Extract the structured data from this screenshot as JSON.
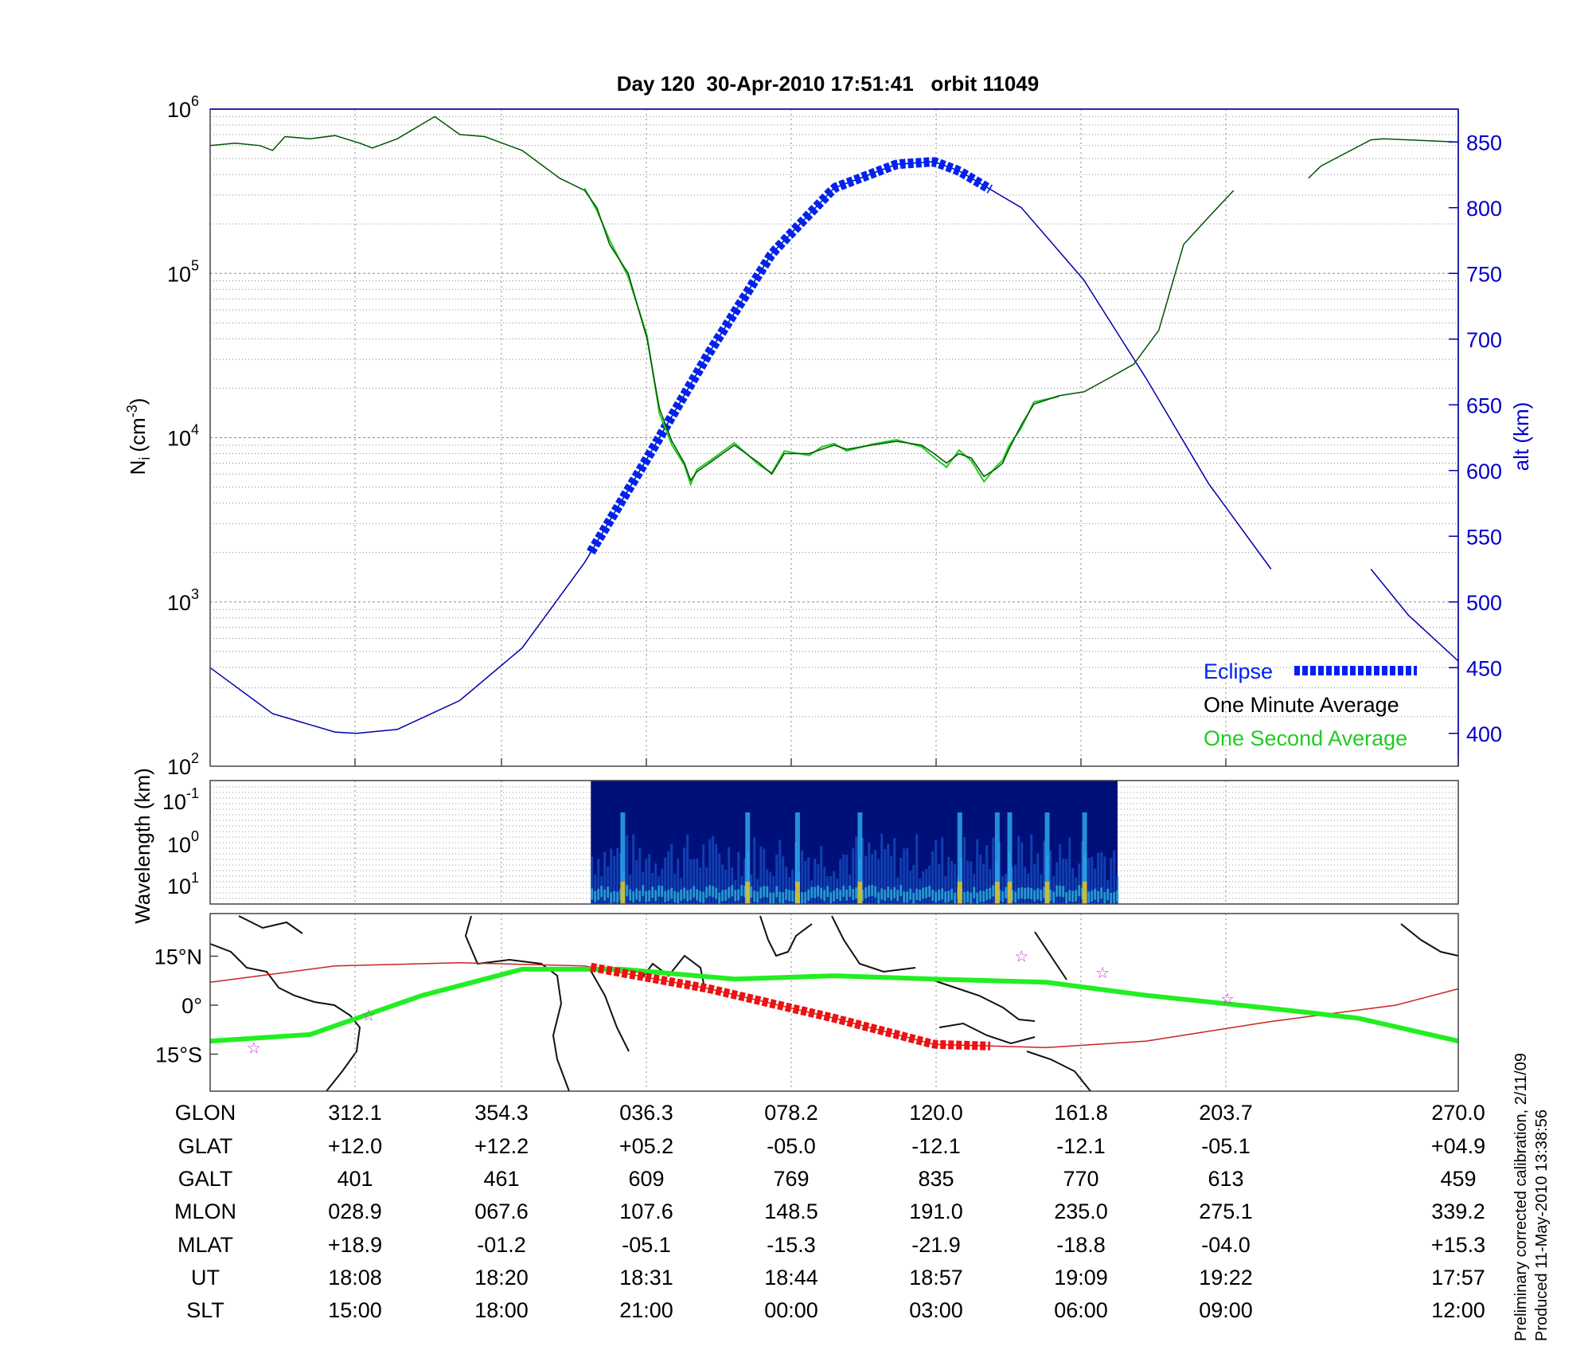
{
  "title": "Day 120  30-Apr-2010 17:51:41   orbit 11049",
  "colors": {
    "ion_density_minute": "#005500",
    "ion_density_second": "#22cc22",
    "altitude": "#0000aa",
    "eclipse": "#0022ee",
    "ground_track": "#22ee22",
    "orbit_line": "#cc2222",
    "eclipse_track": "#ee1111",
    "station_star": "#cc33cc",
    "spectrogram_bg": "#00107a"
  },
  "chart_data": [
    {
      "type": "line",
      "ylabel": "N_i (cm^-3)",
      "ylabel_base": "N",
      "ylabel_sub": "i",
      "ylabel_unit": "(cm",
      "ylabel_exp": "-3",
      "ylabel_close": ")",
      "y_scale": "log",
      "ylim": [
        100,
        1000000
      ],
      "y_ticks": [
        {
          "base": "10",
          "exp": "2"
        },
        {
          "base": "10",
          "exp": "3"
        },
        {
          "base": "10",
          "exp": "4"
        },
        {
          "base": "10",
          "exp": "5"
        },
        {
          "base": "10",
          "exp": "6"
        }
      ],
      "y2label": "alt (km)",
      "y2lim": [
        375,
        875
      ],
      "y2_ticks": [
        "400",
        "450",
        "500",
        "550",
        "600",
        "650",
        "700",
        "750",
        "800",
        "850"
      ],
      "grid": true,
      "legend_position": "bottom-right",
      "legend": [
        {
          "label": "Eclipse",
          "color": "#0022ee"
        },
        {
          "label": "One Minute Average",
          "color": "#000000"
        },
        {
          "label": "One Second Average",
          "color": "#22cc22"
        }
      ],
      "series": [
        {
          "name": "One Minute Average",
          "x_frac": [
            0,
            0.02,
            0.04,
            0.05,
            0.06,
            0.08,
            0.1,
            0.12,
            0.13,
            0.15,
            0.18,
            0.2,
            0.22,
            0.25,
            0.28,
            0.3,
            0.31,
            0.32,
            0.335,
            0.35,
            0.36,
            0.37,
            0.38,
            0.385,
            0.39,
            0.4,
            0.42,
            0.44,
            0.45,
            0.46,
            0.48,
            0.49,
            0.5,
            0.51,
            0.53,
            0.55,
            0.57,
            0.58,
            0.59,
            0.6,
            0.61,
            0.62,
            0.63,
            0.635,
            0.64,
            0.65,
            0.66,
            0.68,
            0.69,
            0.7,
            0.72,
            0.74,
            0.76,
            0.78,
            0.8,
            0.82,
            0.83,
            0.87,
            0.88,
            0.89,
            0.93,
            0.94,
            0.96,
            0.98,
            1
          ],
          "y": [
            600000,
            620000,
            600000,
            560000,
            680000,
            660000,
            690000,
            620000,
            580000,
            660000,
            900000,
            700000,
            680000,
            560000,
            380000,
            320000,
            250000,
            150000,
            100000,
            40000,
            15000,
            9500,
            7000,
            5500,
            6200,
            7000,
            9000,
            7000,
            6000,
            8000,
            8000,
            8500,
            9000,
            8500,
            9000,
            9500,
            9000,
            8000,
            7000,
            8000,
            7500,
            5800,
            6500,
            7000,
            8500,
            12000,
            16000,
            18000,
            18500,
            19000,
            23000,
            28000,
            45000,
            150000,
            220000,
            320000,
            null,
            null,
            380000,
            450000,
            650000,
            660000,
            650000,
            640000,
            630000
          ]
        },
        {
          "name": "One Second Average",
          "x_frac": [
            0.3,
            0.31,
            0.32,
            0.335,
            0.35,
            0.36,
            0.37,
            0.38,
            0.385,
            0.39,
            0.4,
            0.42,
            0.44,
            0.45,
            0.46,
            0.48,
            0.49,
            0.5,
            0.51,
            0.53,
            0.55,
            0.57,
            0.58,
            0.59,
            0.6,
            0.61,
            0.62,
            0.63,
            0.635,
            0.64,
            0.65,
            0.66,
            0.68
          ],
          "y": [
            330000,
            240000,
            160000,
            95000,
            42000,
            14000,
            9000,
            6800,
            5200,
            6400,
            7200,
            9300,
            6800,
            6100,
            8300,
            7800,
            8800,
            9200,
            8300,
            9100,
            9700,
            8800,
            7600,
            6600,
            8400,
            7200,
            5400,
            6700,
            7300,
            8900,
            11500,
            16500,
            17800
          ]
        },
        {
          "name": "Altitude",
          "axis": "right",
          "x_frac": [
            0,
            0.05,
            0.1,
            0.117,
            0.15,
            0.2,
            0.25,
            0.3,
            0.35,
            0.4,
            0.45,
            0.5,
            0.55,
            0.58,
            0.6,
            0.65,
            0.7,
            0.75,
            0.8,
            0.85,
            0.87,
            0.88,
            0.93,
            0.96,
            1
          ],
          "y": [
            450,
            415,
            401,
            400,
            403,
            425,
            465,
            530,
            609,
            690,
            765,
            815,
            833,
            835,
            828,
            800,
            745,
            670,
            590,
            525,
            null,
            null,
            525,
            490,
            455
          ]
        }
      ],
      "eclipse_x_frac": [
        0.305,
        0.628
      ]
    },
    {
      "type": "heatmap",
      "ylabel": "Wavelength (km)",
      "y_scale": "log",
      "y_ticks": [
        {
          "base": "10",
          "exp": "-1"
        },
        {
          "base": "10",
          "exp": "0"
        },
        {
          "base": "10",
          "exp": "1"
        }
      ],
      "x_frac_range": [
        0.305,
        0.727
      ],
      "bright_bands_x_frac": [
        0.33,
        0.43,
        0.47,
        0.52,
        0.6,
        0.63,
        0.64,
        0.67,
        0.7
      ]
    },
    {
      "type": "map",
      "y_ticks": [
        "15°N",
        "0°",
        "15°S"
      ],
      "ground_track_lat": [
        {
          "lon_frac": 0.0,
          "lat": -11
        },
        {
          "lon_frac": 0.08,
          "lat": -9
        },
        {
          "lon_frac": 0.17,
          "lat": 3
        },
        {
          "lon_frac": 0.25,
          "lat": 11
        },
        {
          "lon_frac": 0.33,
          "lat": 11
        },
        {
          "lon_frac": 0.42,
          "lat": 8
        },
        {
          "lon_frac": 0.5,
          "lat": 9
        },
        {
          "lon_frac": 0.58,
          "lat": 8
        },
        {
          "lon_frac": 0.67,
          "lat": 7
        },
        {
          "lon_frac": 0.75,
          "lat": 3
        },
        {
          "lon_frac": 0.85,
          "lat": -1
        },
        {
          "lon_frac": 0.92,
          "lat": -4
        },
        {
          "lon_frac": 1.0,
          "lat": -11
        }
      ],
      "orbit_lat": [
        {
          "lon_frac": 0.0,
          "lat": 7
        },
        {
          "lon_frac": 0.1,
          "lat": 12
        },
        {
          "lon_frac": 0.2,
          "lat": 13
        },
        {
          "lon_frac": 0.3,
          "lat": 12
        },
        {
          "lon_frac": 0.4,
          "lat": 5
        },
        {
          "lon_frac": 0.5,
          "lat": -4
        },
        {
          "lon_frac": 0.58,
          "lat": -12
        },
        {
          "lon_frac": 0.67,
          "lat": -13
        },
        {
          "lon_frac": 0.75,
          "lat": -11
        },
        {
          "lon_frac": 0.85,
          "lat": -5
        },
        {
          "lon_frac": 0.95,
          "lat": 0
        },
        {
          "lon_frac": 1.0,
          "lat": 5
        }
      ],
      "eclipse_track_lon_frac": [
        0.305,
        0.628
      ],
      "stations": [
        {
          "lon_frac": 0.035,
          "lat": -13
        },
        {
          "lon_frac": 0.127,
          "lat": -3
        },
        {
          "lon_frac": 0.65,
          "lat": 15
        },
        {
          "lon_frac": 0.715,
          "lat": 10
        },
        {
          "lon_frac": 0.815,
          "lat": 2
        }
      ]
    }
  ],
  "table": {
    "row_labels": [
      "GLON",
      "GLAT",
      "GALT",
      "MLON",
      "MLAT",
      "UT",
      "SLT"
    ],
    "columns": [
      [
        "312.1",
        "+12.0",
        "401",
        "028.9",
        "+18.9",
        "18:08",
        "15:00"
      ],
      [
        "354.3",
        "+12.2",
        "461",
        "067.6",
        "-01.2",
        "18:20",
        "18:00"
      ],
      [
        "036.3",
        "+05.2",
        "609",
        "107.6",
        "-05.1",
        "18:31",
        "21:00"
      ],
      [
        "078.2",
        "-05.0",
        "769",
        "148.5",
        "-15.3",
        "18:44",
        "00:00"
      ],
      [
        "120.0",
        "-12.1",
        "835",
        "191.0",
        "-21.9",
        "18:57",
        "03:00"
      ],
      [
        "161.8",
        "-12.1",
        "770",
        "235.0",
        "-18.8",
        "19:09",
        "06:00"
      ],
      [
        "203.7",
        "-05.1",
        "613",
        "275.1",
        "-04.0",
        "19:22",
        "09:00"
      ],
      [
        "270.0",
        "+04.9",
        "459",
        "339.2",
        "+15.3",
        "17:57",
        "12:00"
      ]
    ]
  },
  "notes": {
    "calibration": "Preliminary corrected calibration, 2/11/09",
    "produced": "Produced 11-May-2010 13:38:56"
  }
}
